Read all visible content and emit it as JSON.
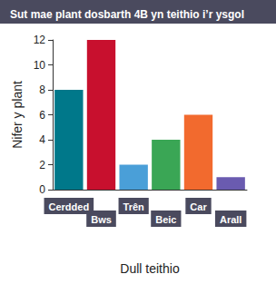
{
  "chart_data": {
    "type": "bar",
    "title": "Sut mae plant dosbarth 4B yn teithio i’r ysgol",
    "x_label": "Dull teithio",
    "y_label": "Nifer y plant",
    "categories": [
      "Cerdded",
      "Bws",
      "Trên",
      "Beic",
      "Car",
      "Arall"
    ],
    "values": [
      8,
      12,
      2,
      4,
      6,
      1
    ],
    "colors": [
      "#00788a",
      "#c8102e",
      "#4a9fd8",
      "#3aa655",
      "#f26a2e",
      "#6a5bb0"
    ],
    "ylim": [
      0,
      12
    ],
    "yticks": [
      0,
      2,
      4,
      6,
      8,
      10,
      12
    ],
    "grid": false
  }
}
